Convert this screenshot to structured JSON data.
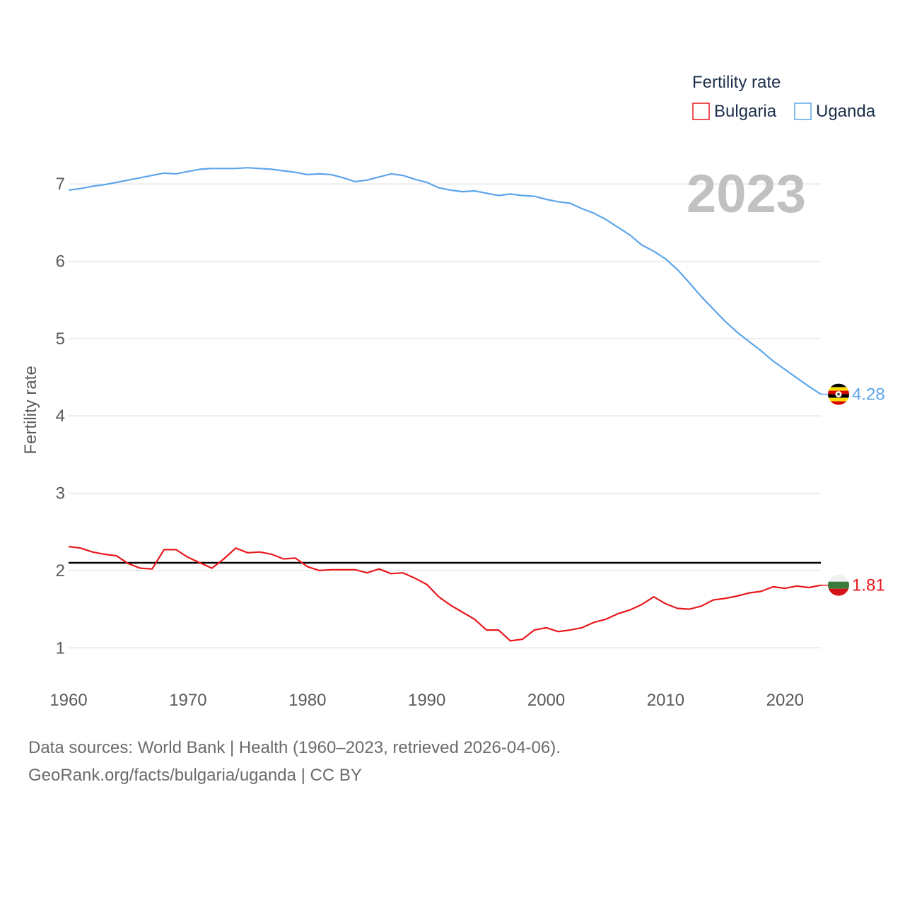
{
  "chart_data": {
    "type": "line",
    "title": "Fertility rate",
    "ylabel": "Fertility rate",
    "xlabel": "",
    "year_display": "2023",
    "xlim": [
      1960,
      2023
    ],
    "ylim": [
      0.6,
      7.55
    ],
    "x_ticks": [
      1960,
      1970,
      1980,
      1990,
      2000,
      2010,
      2020
    ],
    "y_ticks": [
      1,
      2,
      3,
      4,
      5,
      6,
      7
    ],
    "reference_line": {
      "value": 2.1,
      "color": "#000000"
    },
    "x": [
      1960,
      1961,
      1962,
      1963,
      1964,
      1965,
      1966,
      1967,
      1968,
      1969,
      1970,
      1971,
      1972,
      1973,
      1974,
      1975,
      1976,
      1977,
      1978,
      1979,
      1980,
      1981,
      1982,
      1983,
      1984,
      1985,
      1986,
      1987,
      1988,
      1989,
      1990,
      1991,
      1992,
      1993,
      1994,
      1995,
      1996,
      1997,
      1998,
      1999,
      2000,
      2001,
      2002,
      2003,
      2004,
      2005,
      2006,
      2007,
      2008,
      2009,
      2010,
      2011,
      2012,
      2013,
      2014,
      2015,
      2016,
      2017,
      2018,
      2019,
      2020,
      2021,
      2022,
      2023
    ],
    "series": [
      {
        "name": "Bulgaria",
        "color": "#e8191c",
        "end_label": "1.81",
        "flag": "bulgaria",
        "values": [
          2.31,
          2.29,
          2.24,
          2.21,
          2.19,
          2.09,
          2.03,
          2.02,
          2.27,
          2.27,
          2.17,
          2.1,
          2.03,
          2.15,
          2.29,
          2.23,
          2.24,
          2.21,
          2.15,
          2.16,
          2.05,
          2.0,
          2.01,
          2.01,
          2.01,
          1.97,
          2.02,
          1.96,
          1.97,
          1.9,
          1.82,
          1.66,
          1.55,
          1.46,
          1.37,
          1.23,
          1.23,
          1.09,
          1.11,
          1.23,
          1.26,
          1.21,
          1.23,
          1.26,
          1.33,
          1.37,
          1.44,
          1.49,
          1.56,
          1.66,
          1.57,
          1.51,
          1.5,
          1.54,
          1.62,
          1.64,
          1.67,
          1.71,
          1.73,
          1.79,
          1.77,
          1.8,
          1.78,
          1.81
        ]
      },
      {
        "name": "Uganda",
        "color": "#5da5ea",
        "end_label": "4.28",
        "flag": "uganda",
        "values": [
          6.92,
          6.94,
          6.97,
          6.99,
          7.02,
          7.05,
          7.08,
          7.11,
          7.14,
          7.13,
          7.16,
          7.19,
          7.2,
          7.2,
          7.2,
          7.21,
          7.2,
          7.19,
          7.17,
          7.15,
          7.12,
          7.13,
          7.12,
          7.08,
          7.03,
          7.05,
          7.09,
          7.13,
          7.11,
          7.06,
          7.02,
          6.95,
          6.92,
          6.9,
          6.91,
          6.88,
          6.85,
          6.87,
          6.85,
          6.84,
          6.8,
          6.77,
          6.75,
          6.68,
          6.62,
          6.54,
          6.44,
          6.34,
          6.21,
          6.13,
          6.03,
          5.89,
          5.72,
          5.54,
          5.38,
          5.22,
          5.08,
          4.96,
          4.84,
          4.71,
          4.6,
          4.49,
          4.38,
          4.28
        ]
      }
    ],
    "legend": {
      "title": "Fertility rate",
      "placement": "top-right"
    }
  },
  "footer": {
    "sources": "Data sources: World Bank | Health (1960–2023, retrieved 2026-04-06).",
    "attribution": "GeoRank.org/facts/bulgaria/uganda | CC BY"
  }
}
